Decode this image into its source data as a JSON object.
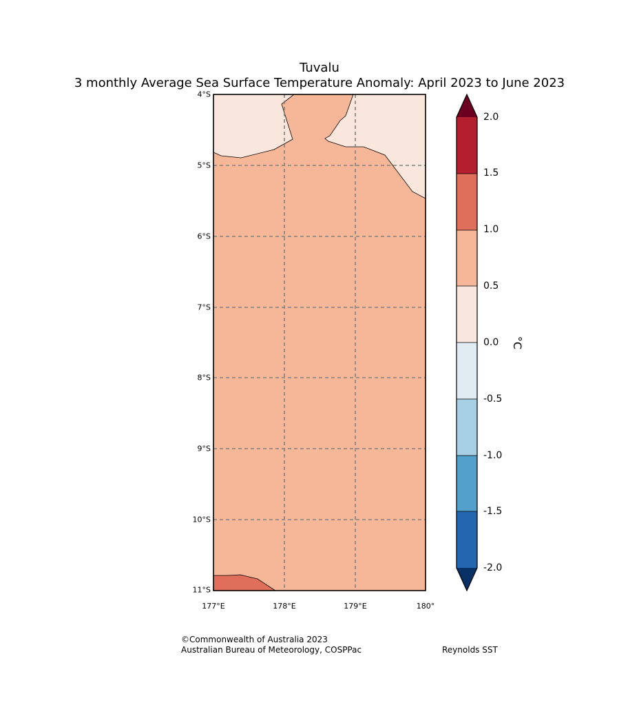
{
  "title": {
    "line1": "Tuvalu",
    "line2": "3 monthly Average Sea Surface Temperature Anomaly: April 2023 to June 2023"
  },
  "map": {
    "lat_labels": [
      "4°S",
      "5°S",
      "6°S",
      "7°S",
      "8°S",
      "9°S",
      "10°S",
      "11°S"
    ],
    "lon_labels": [
      "177°E",
      "178°E",
      "179°E",
      "180°"
    ],
    "extent": {
      "lon_min": 177,
      "lon_max": 180,
      "lat_min": -11,
      "lat_max": -4
    },
    "regions": [
      {
        "name": "anomaly 0.5 to 1.0",
        "color": "#f6b799"
      },
      {
        "name": "anomaly 0.0 to 0.5",
        "color": "#f9e6dc"
      },
      {
        "name": "anomaly 1.0 to 1.5",
        "color": "#df6f5b"
      }
    ]
  },
  "colorbar": {
    "unit": "°C",
    "ticks": [
      "2.0",
      "1.5",
      "1.0",
      "0.5",
      "0.0",
      "-0.5",
      "-1.0",
      "-1.5",
      "-2.0"
    ],
    "colors_top_to_bottom": [
      "#b31f2e",
      "#df6f5b",
      "#f6b799",
      "#f9e6dc",
      "#e0ebf2",
      "#a8d0e4",
      "#529fcc",
      "#2467ae"
    ],
    "over_color": "#6b0020",
    "under_color": "#073064"
  },
  "footer": {
    "credit_line1": "©Commonwealth of Australia 2023",
    "credit_line2": "Australian Bureau of Meteorology, COSPPac",
    "source": "Reynolds SST"
  }
}
